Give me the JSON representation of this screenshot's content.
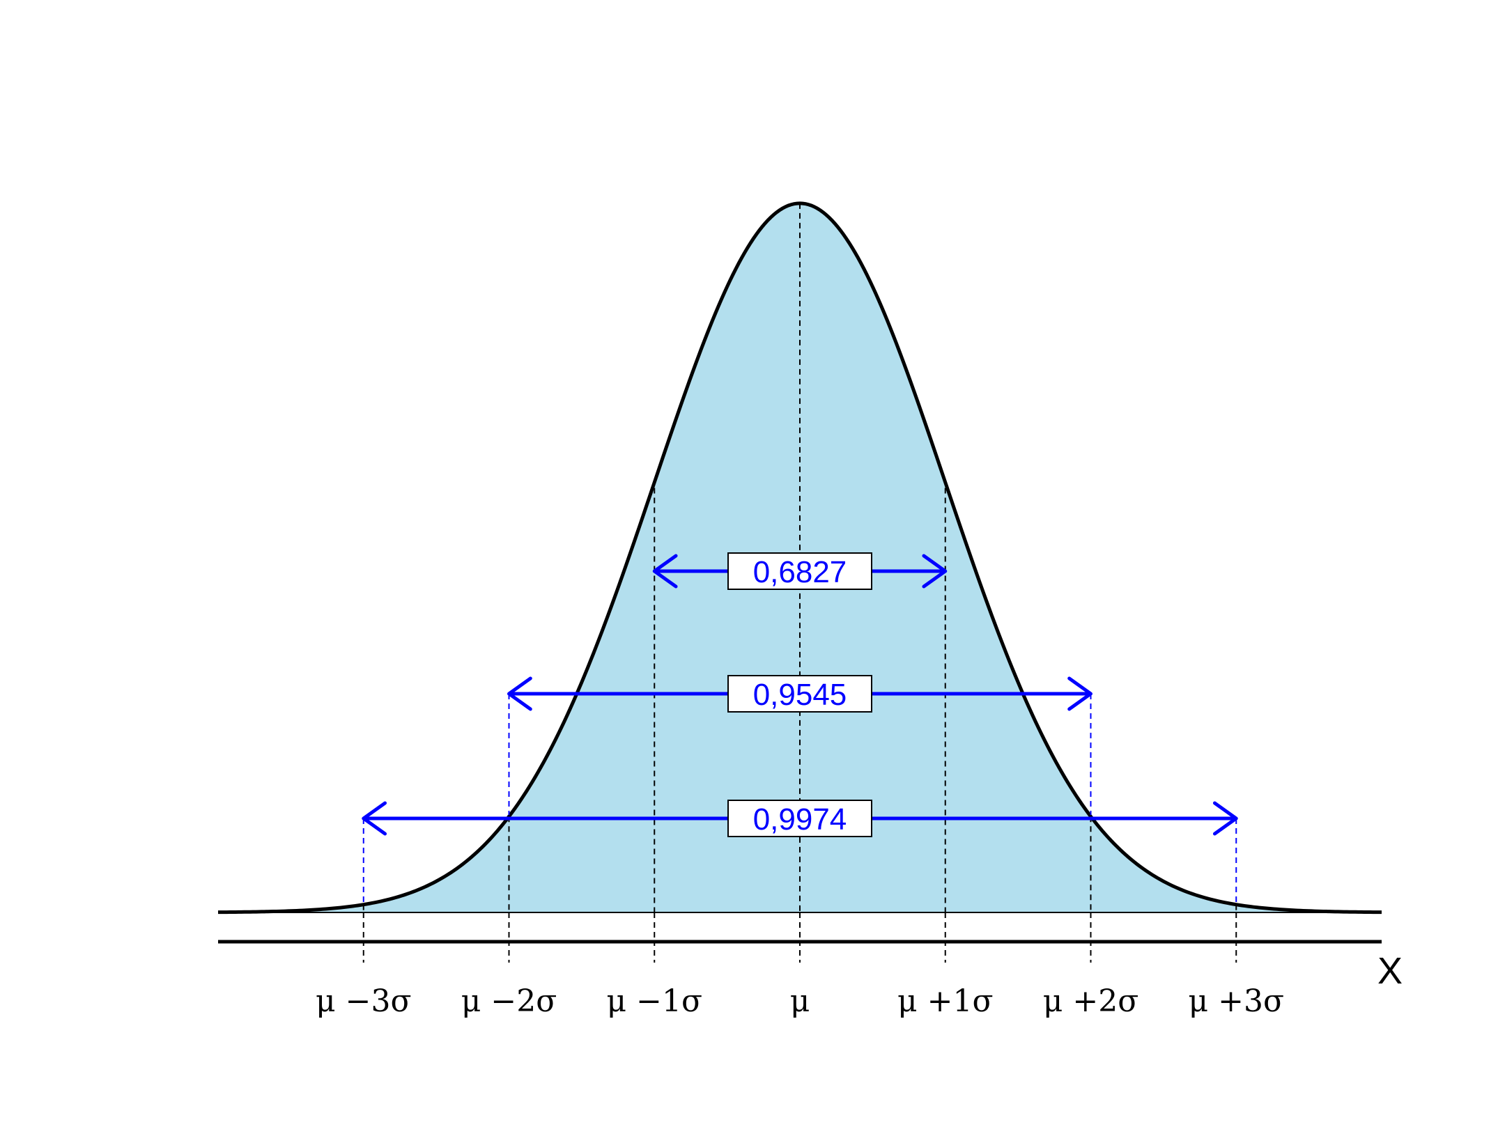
{
  "chart_data": {
    "type": "area",
    "title": "",
    "xlabel": "X",
    "ylabel": "",
    "distribution": "normal",
    "xlim": [
      -4,
      4
    ],
    "curve_peak": 0.3989,
    "grid": false,
    "legend": "none",
    "tick_positions": [
      -3,
      -2,
      -1,
      0,
      1,
      2,
      3
    ],
    "tick_labels": [
      "μ −3σ",
      "μ −2σ",
      "μ −1σ",
      "μ",
      "μ +1σ",
      "μ +2σ",
      "μ +3σ"
    ],
    "intervals": [
      {
        "from": -1,
        "to": 1,
        "probability": "0,6827"
      },
      {
        "from": -2,
        "to": 2,
        "probability": "0,9545"
      },
      {
        "from": -3,
        "to": 3,
        "probability": "0,9974"
      }
    ]
  },
  "colors": {
    "fill": "#b3dfee",
    "curve": "#000000",
    "arrow": "#0000ff",
    "label_text": "#0000ff",
    "label_box": "#ffffff"
  }
}
